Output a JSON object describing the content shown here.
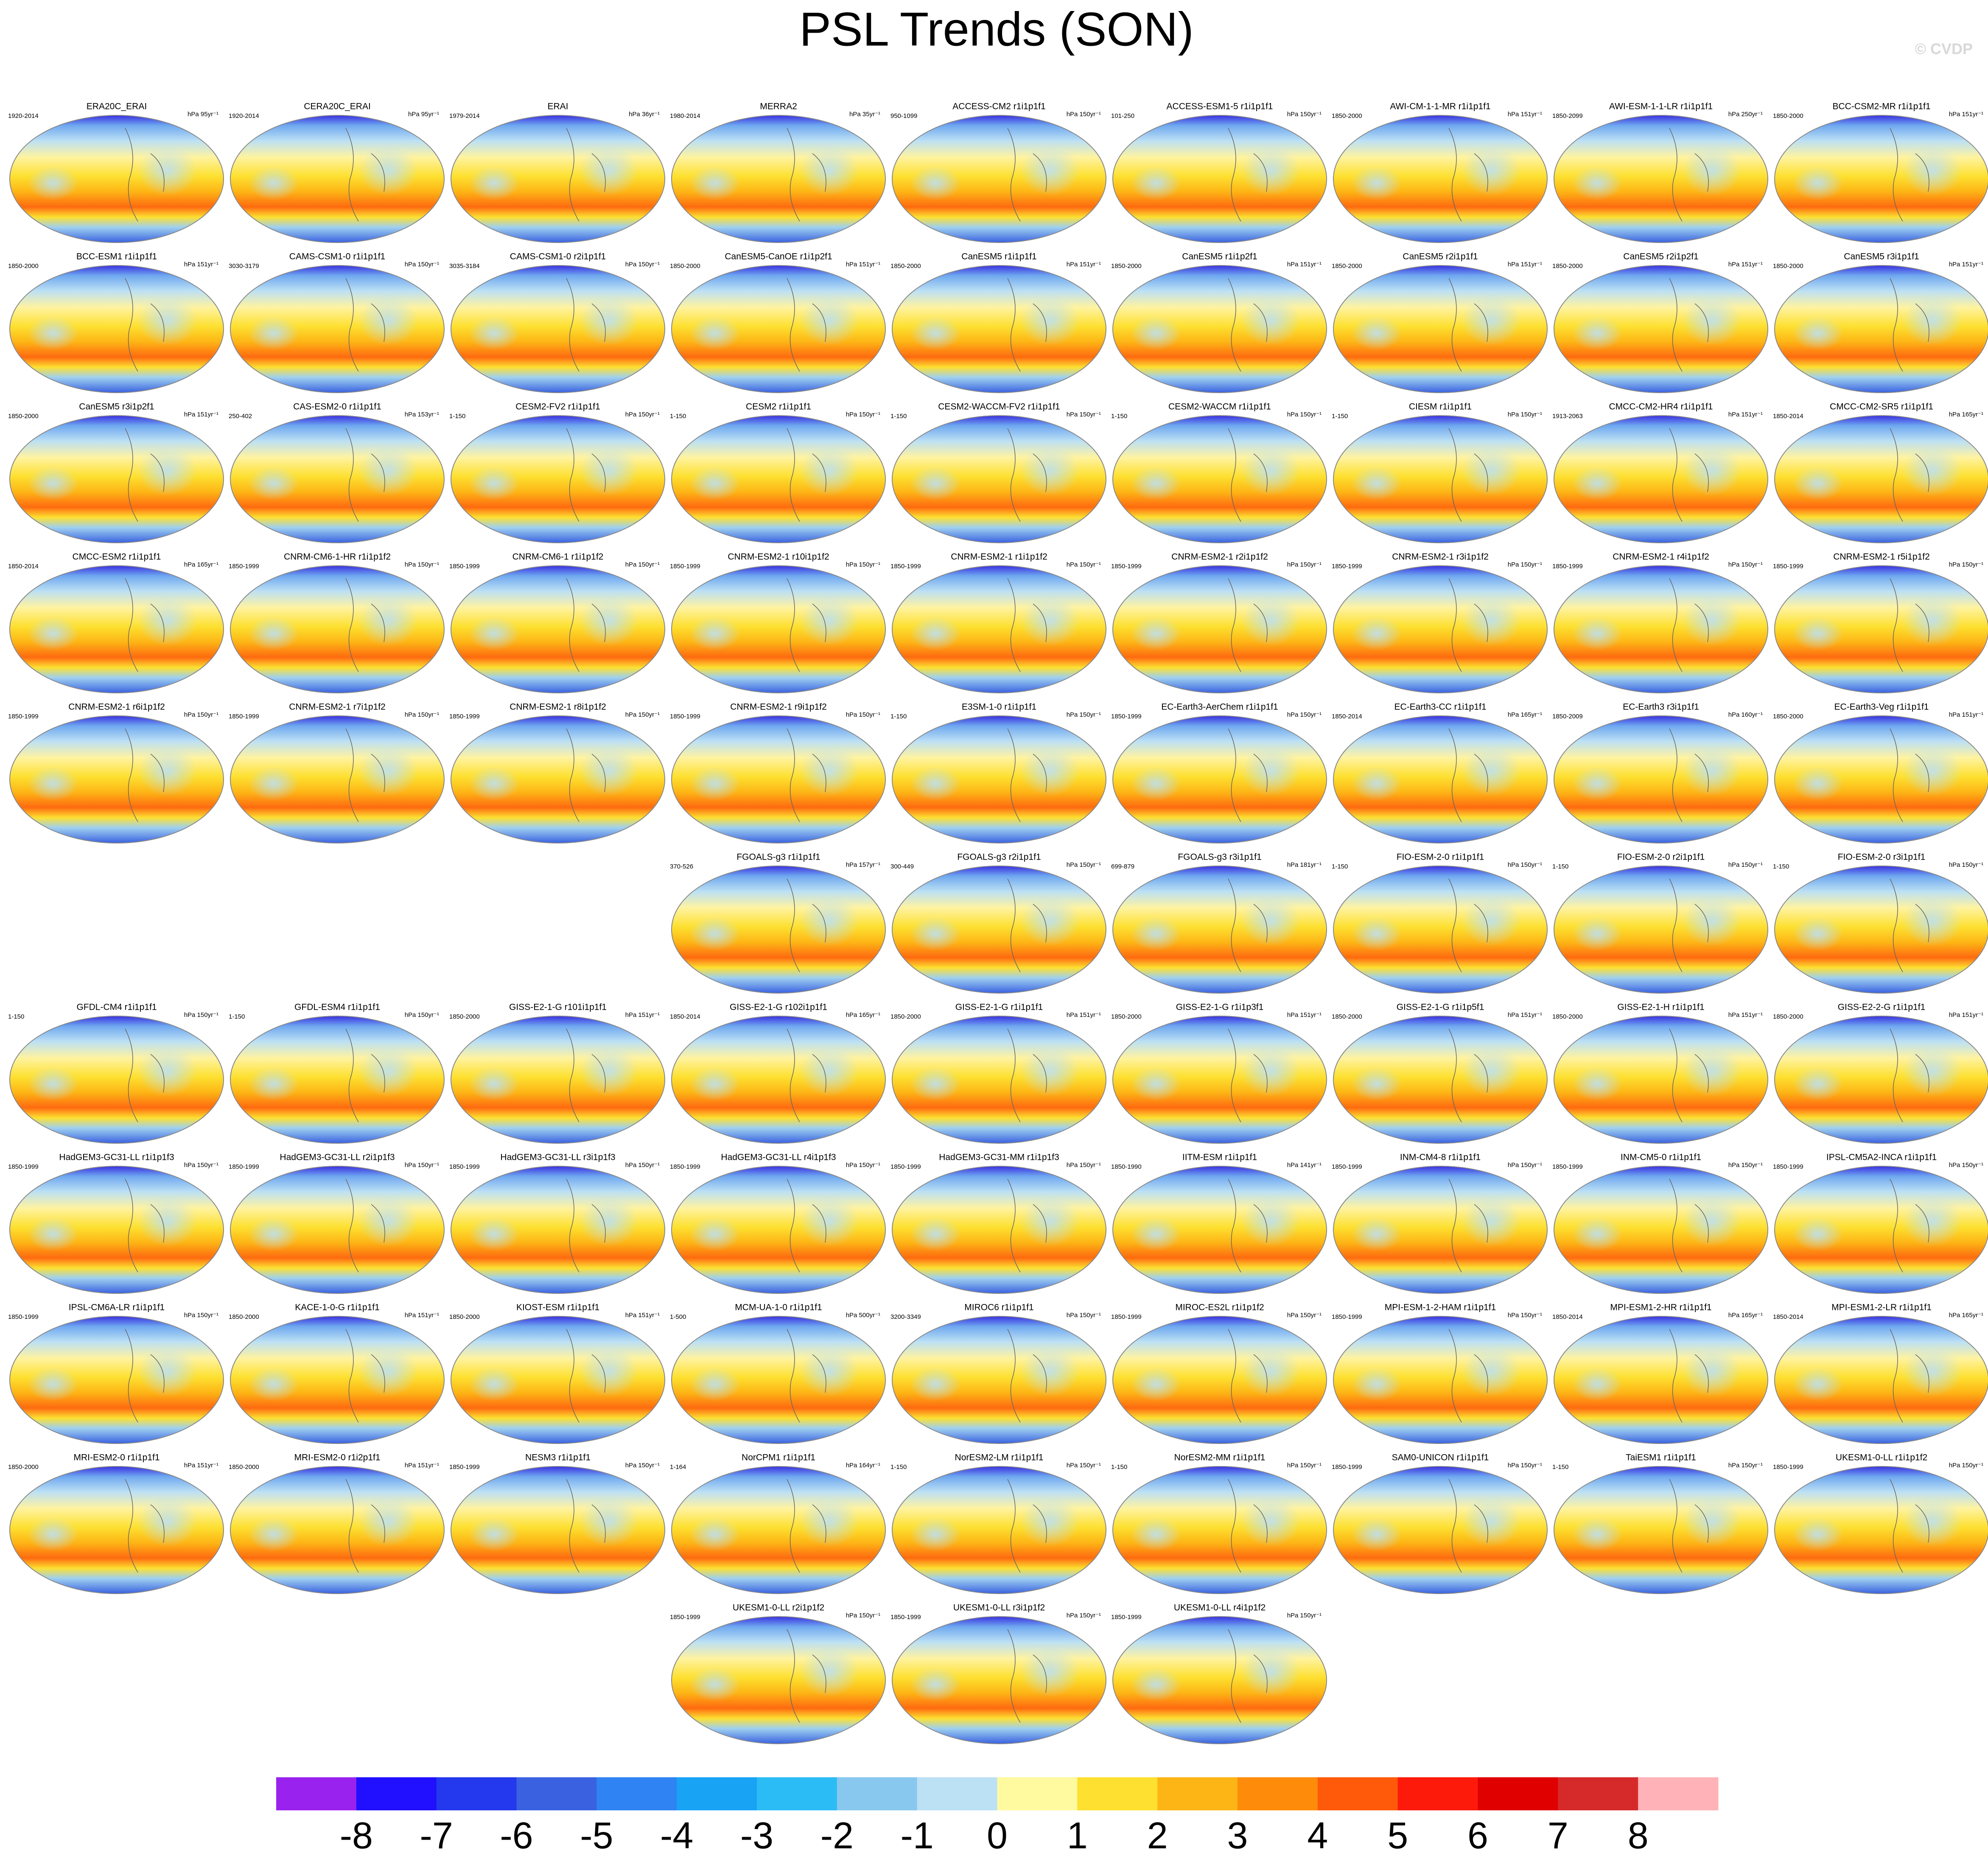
{
  "title": "PSL Trends (SON)",
  "credit": "© CVDP",
  "rows": [
    [
      {
        "title": "ERA20C_ERAI",
        "period": "1920-2014",
        "units": "hPa 95yr⁻¹"
      },
      {
        "title": "CERA20C_ERAI",
        "period": "1920-2014",
        "units": "hPa 95yr⁻¹"
      },
      {
        "title": "ERAI",
        "period": "1979-2014",
        "units": "hPa 36yr⁻¹"
      },
      {
        "title": "MERRA2",
        "period": "1980-2014",
        "units": "hPa 35yr⁻¹"
      },
      {
        "title": "ACCESS-CM2 r1i1p1f1",
        "period": "950-1099",
        "units": "hPa 150yr⁻¹"
      },
      {
        "title": "ACCESS-ESM1-5 r1i1p1f1",
        "period": "101-250",
        "units": "hPa 150yr⁻¹"
      },
      {
        "title": "AWI-CM-1-1-MR r1i1p1f1",
        "period": "1850-2000",
        "units": "hPa 151yr⁻¹"
      },
      {
        "title": "AWI-ESM-1-1-LR r1i1p1f1",
        "period": "1850-2099",
        "units": "hPa 250yr⁻¹"
      },
      {
        "title": "BCC-CSM2-MR r1i1p1f1",
        "period": "1850-2000",
        "units": "hPa 151yr⁻¹"
      }
    ],
    [
      {
        "title": "BCC-ESM1 r1i1p1f1",
        "period": "1850-2000",
        "units": "hPa 151yr⁻¹"
      },
      {
        "title": "CAMS-CSM1-0 r1i1p1f1",
        "period": "3030-3179",
        "units": "hPa 150yr⁻¹"
      },
      {
        "title": "CAMS-CSM1-0 r2i1p1f1",
        "period": "3035-3184",
        "units": "hPa 150yr⁻¹"
      },
      {
        "title": "CanESM5-CanOE r1i1p2f1",
        "period": "1850-2000",
        "units": "hPa 151yr⁻¹"
      },
      {
        "title": "CanESM5 r1i1p1f1",
        "period": "1850-2000",
        "units": "hPa 151yr⁻¹"
      },
      {
        "title": "CanESM5 r1i1p2f1",
        "period": "1850-2000",
        "units": "hPa 151yr⁻¹"
      },
      {
        "title": "CanESM5 r2i1p1f1",
        "period": "1850-2000",
        "units": "hPa 151yr⁻¹"
      },
      {
        "title": "CanESM5 r2i1p2f1",
        "period": "1850-2000",
        "units": "hPa 151yr⁻¹"
      },
      {
        "title": "CanESM5 r3i1p1f1",
        "period": "1850-2000",
        "units": "hPa 151yr⁻¹"
      }
    ],
    [
      {
        "title": "CanESM5 r3i1p2f1",
        "period": "1850-2000",
        "units": "hPa 151yr⁻¹"
      },
      {
        "title": "CAS-ESM2-0 r1i1p1f1",
        "period": "250-402",
        "units": "hPa 153yr⁻¹"
      },
      {
        "title": "CESM2-FV2 r1i1p1f1",
        "period": "1-150",
        "units": "hPa 150yr⁻¹"
      },
      {
        "title": "CESM2 r1i1p1f1",
        "period": "1-150",
        "units": "hPa 150yr⁻¹"
      },
      {
        "title": "CESM2-WACCM-FV2 r1i1p1f1",
        "period": "1-150",
        "units": "hPa 150yr⁻¹"
      },
      {
        "title": "CESM2-WACCM r1i1p1f1",
        "period": "1-150",
        "units": "hPa 150yr⁻¹"
      },
      {
        "title": "CIESM r1i1p1f1",
        "period": "1-150",
        "units": "hPa 150yr⁻¹"
      },
      {
        "title": "CMCC-CM2-HR4 r1i1p1f1",
        "period": "1913-2063",
        "units": "hPa 151yr⁻¹"
      },
      {
        "title": "CMCC-CM2-SR5 r1i1p1f1",
        "period": "1850-2014",
        "units": "hPa 165yr⁻¹"
      }
    ],
    [
      {
        "title": "CMCC-ESM2 r1i1p1f1",
        "period": "1850-2014",
        "units": "hPa 165yr⁻¹"
      },
      {
        "title": "CNRM-CM6-1-HR r1i1p1f2",
        "period": "1850-1999",
        "units": "hPa 150yr⁻¹"
      },
      {
        "title": "CNRM-CM6-1 r1i1p1f2",
        "period": "1850-1999",
        "units": "hPa 150yr⁻¹"
      },
      {
        "title": "CNRM-ESM2-1 r10i1p1f2",
        "period": "1850-1999",
        "units": "hPa 150yr⁻¹"
      },
      {
        "title": "CNRM-ESM2-1 r1i1p1f2",
        "period": "1850-1999",
        "units": "hPa 150yr⁻¹"
      },
      {
        "title": "CNRM-ESM2-1 r2i1p1f2",
        "period": "1850-1999",
        "units": "hPa 150yr⁻¹"
      },
      {
        "title": "CNRM-ESM2-1 r3i1p1f2",
        "period": "1850-1999",
        "units": "hPa 150yr⁻¹"
      },
      {
        "title": "CNRM-ESM2-1 r4i1p1f2",
        "period": "1850-1999",
        "units": "hPa 150yr⁻¹"
      },
      {
        "title": "CNRM-ESM2-1 r5i1p1f2",
        "period": "1850-1999",
        "units": "hPa 150yr⁻¹"
      }
    ],
    [
      {
        "title": "CNRM-ESM2-1 r6i1p1f2",
        "period": "1850-1999",
        "units": "hPa 150yr⁻¹"
      },
      {
        "title": "CNRM-ESM2-1 r7i1p1f2",
        "period": "1850-1999",
        "units": "hPa 150yr⁻¹"
      },
      {
        "title": "CNRM-ESM2-1 r8i1p1f2",
        "period": "1850-1999",
        "units": "hPa 150yr⁻¹"
      },
      {
        "title": "CNRM-ESM2-1 r9i1p1f2",
        "period": "1850-1999",
        "units": "hPa 150yr⁻¹"
      },
      {
        "title": "E3SM-1-0 r1i1p1f1",
        "period": "1-150",
        "units": "hPa 150yr⁻¹"
      },
      {
        "title": "EC-Earth3-AerChem r1i1p1f1",
        "period": "1850-1999",
        "units": "hPa 150yr⁻¹"
      },
      {
        "title": "EC-Earth3-CC r1i1p1f1",
        "period": "1850-2014",
        "units": "hPa 165yr⁻¹"
      },
      {
        "title": "EC-Earth3 r3i1p1f1",
        "period": "1850-2009",
        "units": "hPa 160yr⁻¹"
      },
      {
        "title": "EC-Earth3-Veg r1i1p1f1",
        "period": "1850-2000",
        "units": "hPa 151yr⁻¹"
      }
    ],
    [
      {
        "title": "FGOALS-g3 r1i1p1f1",
        "period": "370-526",
        "units": "hPa 157yr⁻¹"
      },
      {
        "title": "FGOALS-g3 r2i1p1f1",
        "period": "300-449",
        "units": "hPa 150yr⁻¹"
      },
      {
        "title": "FGOALS-g3 r3i1p1f1",
        "period": "699-879",
        "units": "hPa 181yr⁻¹"
      },
      {
        "title": "FIO-ESM-2-0 r1i1p1f1",
        "period": "1-150",
        "units": "hPa 150yr⁻¹"
      },
      {
        "title": "FIO-ESM-2-0 r2i1p1f1",
        "period": "1-150",
        "units": "hPa 150yr⁻¹"
      },
      {
        "title": "FIO-ESM-2-0 r3i1p1f1",
        "period": "1-150",
        "units": "hPa 150yr⁻¹"
      }
    ],
    [
      {
        "title": "GFDL-CM4 r1i1p1f1",
        "period": "1-150",
        "units": "hPa 150yr⁻¹"
      },
      {
        "title": "GFDL-ESM4 r1i1p1f1",
        "period": "1-150",
        "units": "hPa 150yr⁻¹"
      },
      {
        "title": "GISS-E2-1-G r101i1p1f1",
        "period": "1850-2000",
        "units": "hPa 151yr⁻¹"
      },
      {
        "title": "GISS-E2-1-G r102i1p1f1",
        "period": "1850-2014",
        "units": "hPa 165yr⁻¹"
      },
      {
        "title": "GISS-E2-1-G r1i1p1f1",
        "period": "1850-2000",
        "units": "hPa 151yr⁻¹"
      },
      {
        "title": "GISS-E2-1-G r1i1p3f1",
        "period": "1850-2000",
        "units": "hPa 151yr⁻¹"
      },
      {
        "title": "GISS-E2-1-G r1i1p5f1",
        "period": "1850-2000",
        "units": "hPa 151yr⁻¹"
      },
      {
        "title": "GISS-E2-1-H r1i1p1f1",
        "period": "1850-2000",
        "units": "hPa 151yr⁻¹"
      },
      {
        "title": "GISS-E2-2-G r1i1p1f1",
        "period": "1850-2000",
        "units": "hPa 151yr⁻¹"
      }
    ],
    [
      {
        "title": "HadGEM3-GC31-LL r1i1p1f3",
        "period": "1850-1999",
        "units": "hPa 150yr⁻¹"
      },
      {
        "title": "HadGEM3-GC31-LL r2i1p1f3",
        "period": "1850-1999",
        "units": "hPa 150yr⁻¹"
      },
      {
        "title": "HadGEM3-GC31-LL r3i1p1f3",
        "period": "1850-1999",
        "units": "hPa 150yr⁻¹"
      },
      {
        "title": "HadGEM3-GC31-LL r4i1p1f3",
        "period": "1850-1999",
        "units": "hPa 150yr⁻¹"
      },
      {
        "title": "HadGEM3-GC31-MM r1i1p1f3",
        "period": "1850-1999",
        "units": "hPa 150yr⁻¹"
      },
      {
        "title": "IITM-ESM r1i1p1f1",
        "period": "1850-1990",
        "units": "hPa 141yr⁻¹"
      },
      {
        "title": "INM-CM4-8 r1i1p1f1",
        "period": "1850-1999",
        "units": "hPa 150yr⁻¹"
      },
      {
        "title": "INM-CM5-0 r1i1p1f1",
        "period": "1850-1999",
        "units": "hPa 150yr⁻¹"
      },
      {
        "title": "IPSL-CM5A2-INCA r1i1p1f1",
        "period": "1850-1999",
        "units": "hPa 150yr⁻¹"
      }
    ],
    [
      {
        "title": "IPSL-CM6A-LR r1i1p1f1",
        "period": "1850-1999",
        "units": "hPa 150yr⁻¹"
      },
      {
        "title": "KACE-1-0-G r1i1p1f1",
        "period": "1850-2000",
        "units": "hPa 151yr⁻¹"
      },
      {
        "title": "KIOST-ESM r1i1p1f1",
        "period": "1850-2000",
        "units": "hPa 151yr⁻¹"
      },
      {
        "title": "MCM-UA-1-0 r1i1p1f1",
        "period": "1-500",
        "units": "hPa 500yr⁻¹"
      },
      {
        "title": "MIROC6 r1i1p1f1",
        "period": "3200-3349",
        "units": "hPa 150yr⁻¹"
      },
      {
        "title": "MIROC-ES2L r1i1p1f2",
        "period": "1850-1999",
        "units": "hPa 150yr⁻¹"
      },
      {
        "title": "MPI-ESM-1-2-HAM r1i1p1f1",
        "period": "1850-1999",
        "units": "hPa 150yr⁻¹"
      },
      {
        "title": "MPI-ESM1-2-HR r1i1p1f1",
        "period": "1850-2014",
        "units": "hPa 165yr⁻¹"
      },
      {
        "title": "MPI-ESM1-2-LR r1i1p1f1",
        "period": "1850-2014",
        "units": "hPa 165yr⁻¹"
      }
    ],
    [
      {
        "title": "MRI-ESM2-0 r1i1p1f1",
        "period": "1850-2000",
        "units": "hPa 151yr⁻¹"
      },
      {
        "title": "MRI-ESM2-0 r1i2p1f1",
        "period": "1850-2000",
        "units": "hPa 151yr⁻¹"
      },
      {
        "title": "NESM3 r1i1p1f1",
        "period": "1850-1999",
        "units": "hPa 150yr⁻¹"
      },
      {
        "title": "NorCPM1 r1i1p1f1",
        "period": "1-164",
        "units": "hPa 164yr⁻¹"
      },
      {
        "title": "NorESM2-LM r1i1p1f1",
        "period": "1-150",
        "units": "hPa 150yr⁻¹"
      },
      {
        "title": "NorESM2-MM r1i1p1f1",
        "period": "1-150",
        "units": "hPa 150yr⁻¹"
      },
      {
        "title": "SAM0-UNICON r1i1p1f1",
        "period": "1850-1999",
        "units": "hPa 150yr⁻¹"
      },
      {
        "title": "TaiESM1 r1i1p1f1",
        "period": "1-150",
        "units": "hPa 150yr⁻¹"
      },
      {
        "title": "UKESM1-0-LL r1i1p1f2",
        "period": "1850-1999",
        "units": "hPa 150yr⁻¹"
      }
    ],
    [
      {
        "title": "UKESM1-0-LL r2i1p1f2",
        "period": "1850-1999",
        "units": "hPa 150yr⁻¹"
      },
      {
        "title": "UKESM1-0-LL r3i1p1f2",
        "period": "1850-1999",
        "units": "hPa 150yr⁻¹"
      },
      {
        "title": "UKESM1-0-LL r4i1p1f2",
        "period": "1850-1999",
        "units": "hPa 150yr⁻¹"
      }
    ]
  ],
  "colorbar": {
    "colors": [
      "#9a22ee",
      "#2010ff",
      "#2438ee",
      "#3a62e0",
      "#2f83f2",
      "#19a3f5",
      "#2bbcf5",
      "#88c8ee",
      "#bce0f4",
      "#fffaa0",
      "#fde030",
      "#fdb515",
      "#fe8c0a",
      "#fe5a0a",
      "#fe1a0a",
      "#e00000",
      "#d62a2a",
      "#ffb3b8"
    ],
    "labels": [
      -8,
      -7,
      -6,
      -5,
      -4,
      -3,
      -2,
      -1,
      0,
      1,
      2,
      3,
      4,
      5,
      6,
      7,
      8
    ]
  }
}
